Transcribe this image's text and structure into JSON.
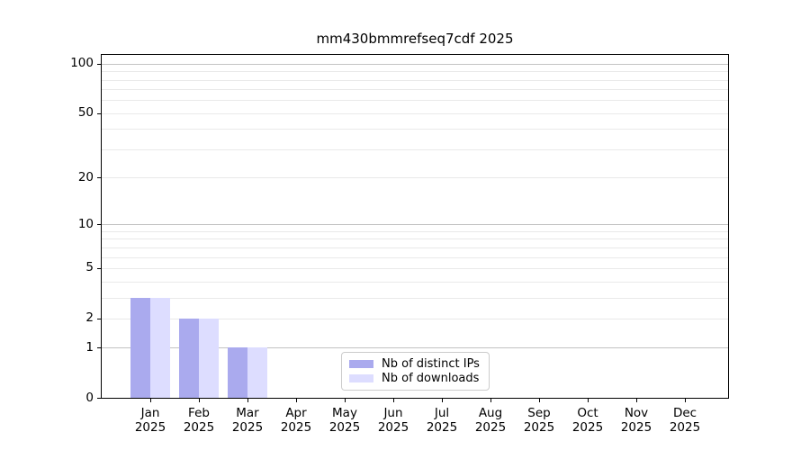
{
  "chart_data": {
    "type": "bar",
    "title": "mm430bmmrefseq7cdf 2025",
    "categories": [
      "Jan 2025",
      "Feb 2025",
      "Mar 2025",
      "Apr 2025",
      "May 2025",
      "Jun 2025",
      "Jul 2025",
      "Aug 2025",
      "Sep 2025",
      "Oct 2025",
      "Nov 2025",
      "Dec 2025"
    ],
    "series": [
      {
        "name": "Nb of distinct IPs",
        "color": "#aaaaee",
        "values": [
          3,
          2,
          1,
          0,
          0,
          0,
          0,
          0,
          0,
          0,
          0,
          0
        ]
      },
      {
        "name": "Nb of downloads",
        "color": "#ddddff",
        "values": [
          3,
          2,
          1,
          0,
          0,
          0,
          0,
          0,
          0,
          0,
          0,
          0
        ]
      }
    ],
    "xlabel": "",
    "ylabel": "",
    "y_scale": "log1p",
    "ylim": [
      0,
      113
    ],
    "y_ticks": [
      0,
      1,
      2,
      5,
      10,
      20,
      50,
      100
    ],
    "y_major_gridlines": [
      1,
      10,
      100
    ],
    "y_minor_gridlines": [
      2,
      3,
      4,
      5,
      6,
      7,
      8,
      9,
      20,
      30,
      40,
      50,
      60,
      70,
      80,
      90
    ],
    "grid": true,
    "legend_position": "inside-bottom-center"
  },
  "colors": {
    "grid_major": "#c3c3c3",
    "grid_minor": "#e9e9e9",
    "axis": "#000000",
    "legend_border": "#cccccc",
    "background": "#ffffff"
  }
}
